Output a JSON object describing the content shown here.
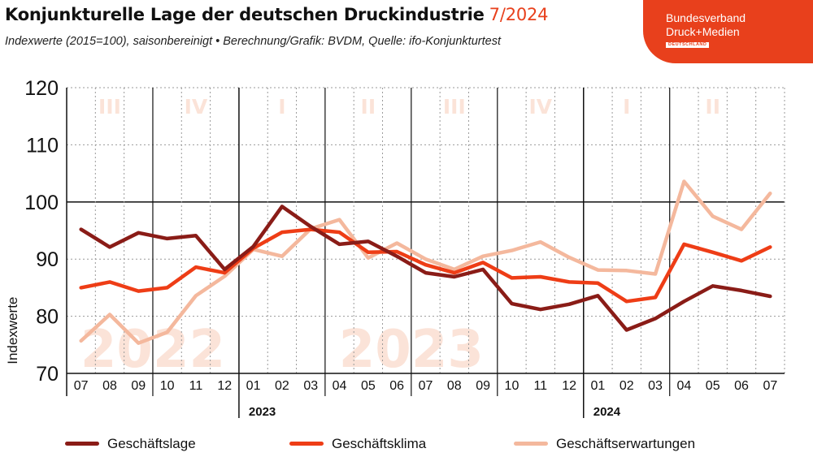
{
  "header": {
    "title": "Konjunkturelle Lage der deutschen Druckindustrie",
    "title_accent": "7/2024",
    "subtitle": "Indexwerte (2015=100), saisonbereinigt • Berechnung/Grafik: BVDM, Quelle: ifo-Konjunkturtest"
  },
  "logo": {
    "line1": "Bundesverband",
    "line2": "Druck+Medien",
    "line3": "DEUTSCHLAND"
  },
  "colors": {
    "accent": "#e8401c",
    "geschaeftslage": "#8a1c17",
    "geschaeftsklima": "#ee3d16",
    "geschaeftserwartungen": "#f4b89d",
    "watermark": "#fbe3d8"
  },
  "chart_data": {
    "type": "line",
    "x": [
      "07",
      "08",
      "09",
      "10",
      "11",
      "12",
      "01",
      "02",
      "03",
      "04",
      "05",
      "06",
      "07",
      "08",
      "09",
      "10",
      "11",
      "12",
      "01",
      "02",
      "03",
      "04",
      "05",
      "06",
      "07"
    ],
    "year_labels": [
      {
        "label": "2023",
        "start_index": 6
      },
      {
        "label": "2024",
        "start_index": 18
      }
    ],
    "watermark_years": [
      {
        "label": "2022",
        "start_index": 0,
        "end_index": 5
      },
      {
        "label": "2023",
        "start_index": 9,
        "end_index": 14
      }
    ],
    "quarters": [
      {
        "label": "III",
        "start_index": 0
      },
      {
        "label": "IV",
        "start_index": 3
      },
      {
        "label": "I",
        "start_index": 6
      },
      {
        "label": "II",
        "start_index": 9
      },
      {
        "label": "III",
        "start_index": 12
      },
      {
        "label": "IV",
        "start_index": 15
      },
      {
        "label": "I",
        "start_index": 18
      },
      {
        "label": "II",
        "start_index": 21
      }
    ],
    "ylabel": "Indexwerte",
    "ylim": [
      70,
      120
    ],
    "yticks": [
      70,
      80,
      90,
      100,
      110,
      120
    ],
    "reference_line": 100,
    "grid": true,
    "legend_position": "bottom",
    "series": [
      {
        "name": "Geschäftslage",
        "color_key": "geschaeftslage",
        "values": [
          95.2,
          92.1,
          94.6,
          93.6,
          94.1,
          88.2,
          92.2,
          99.2,
          95.7,
          92.6,
          93.1,
          90.5,
          87.6,
          86.9,
          88.2,
          82.2,
          81.2,
          82.1,
          83.6,
          77.6,
          79.6,
          82.6,
          85.3,
          84.5,
          83.5
        ]
      },
      {
        "name": "Geschäftsklima",
        "color_key": "geschaeftsklima",
        "values": [
          85.0,
          86.0,
          84.4,
          85.0,
          88.6,
          87.6,
          91.9,
          94.7,
          95.2,
          94.7,
          91.2,
          91.3,
          89.0,
          87.6,
          89.4,
          86.7,
          86.9,
          86.0,
          85.8,
          82.6,
          83.3,
          92.6,
          91.2,
          89.7,
          92.1
        ]
      },
      {
        "name": "Geschäftserwartungen",
        "color_key": "geschaeftserwartungen",
        "values": [
          75.7,
          80.3,
          75.3,
          77.2,
          83.6,
          87.0,
          91.7,
          90.5,
          95.3,
          96.9,
          90.2,
          92.8,
          90.0,
          88.2,
          90.5,
          91.5,
          93.0,
          90.3,
          88.1,
          88.0,
          87.4,
          103.6,
          97.5,
          95.2,
          101.5
        ]
      }
    ]
  }
}
